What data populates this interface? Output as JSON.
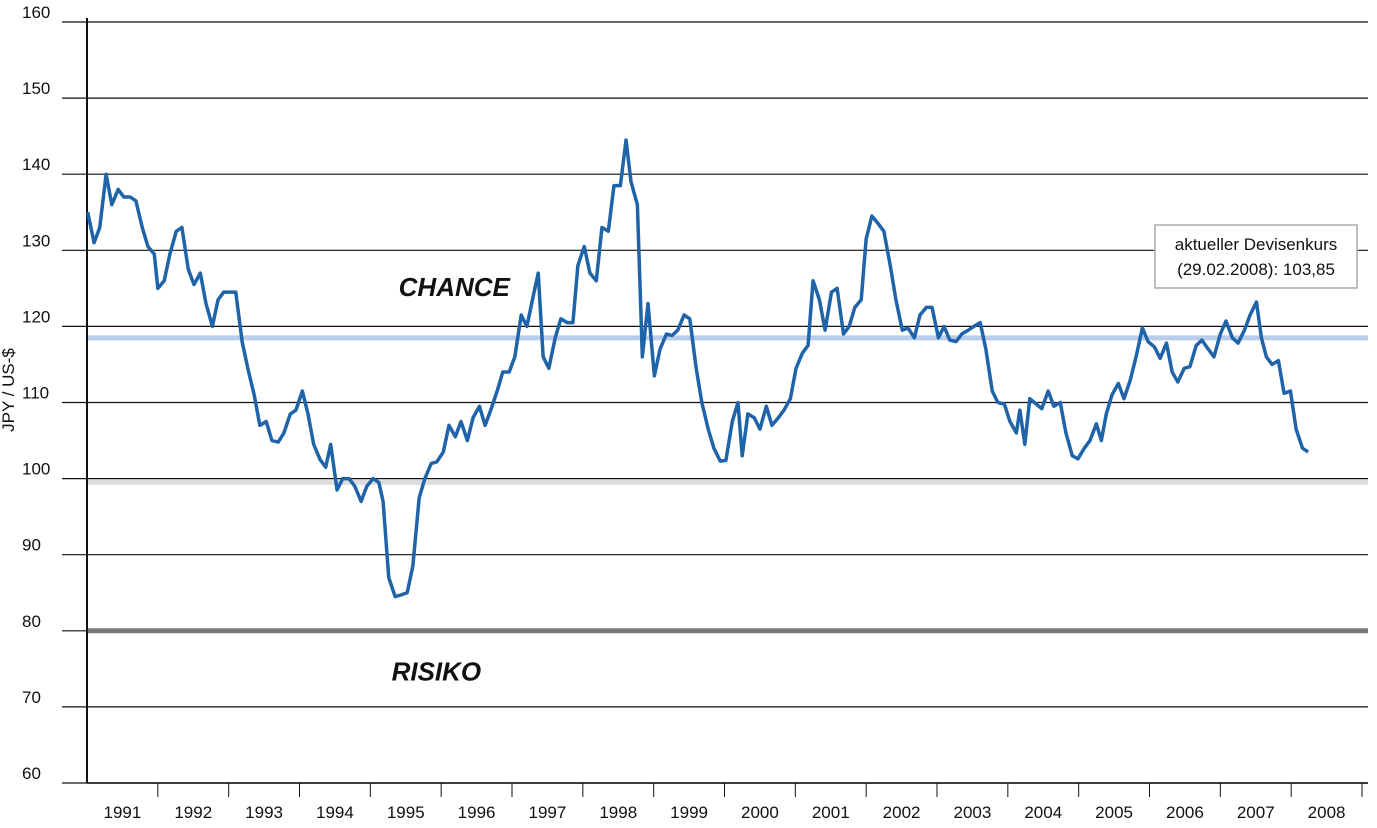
{
  "chart_data": {
    "type": "line",
    "y_label": "JPY / US-$",
    "color": "#1f63a8",
    "xlim": [
      1991,
      2009
    ],
    "ylim": [
      60,
      160
    ],
    "yticks": [
      60,
      70,
      80,
      90,
      100,
      110,
      120,
      130,
      140,
      150,
      160
    ],
    "xticks": [
      {
        "value": 1991.5,
        "label": "1991"
      },
      {
        "value": 1992.5,
        "label": "1992"
      },
      {
        "value": 1993.5,
        "label": "1993"
      },
      {
        "value": 1994.5,
        "label": "1994"
      },
      {
        "value": 1995.5,
        "label": "1995"
      },
      {
        "value": 1996.5,
        "label": "1996"
      },
      {
        "value": 1997.5,
        "label": "1997"
      },
      {
        "value": 1998.5,
        "label": "1998"
      },
      {
        "value": 1999.5,
        "label": "1999"
      },
      {
        "value": 2000.5,
        "label": "2000"
      },
      {
        "value": 2001.5,
        "label": "2001"
      },
      {
        "value": 2002.5,
        "label": "2002"
      },
      {
        "value": 2003.5,
        "label": "2003"
      },
      {
        "value": 2004.5,
        "label": "2004"
      },
      {
        "value": 2005.5,
        "label": "2005"
      },
      {
        "value": 2006.5,
        "label": "2006"
      },
      {
        "value": 2007.5,
        "label": "2007"
      },
      {
        "value": 2008.5,
        "label": "2008"
      }
    ],
    "grid": true,
    "reference_lines": [
      {
        "value": 118.5,
        "color": "#b9cdea"
      },
      {
        "value": 99.5,
        "color": "#dddddd"
      },
      {
        "value": 80,
        "color": "#7a7a7a"
      }
    ],
    "annotations": [
      {
        "text": "CHANCE",
        "x": 1995.4,
        "y": 124
      },
      {
        "text": "RISIKO",
        "x": 1995.3,
        "y": 73.5
      }
    ],
    "note_box": {
      "lines": [
        "aktueller Devisenkurs",
        "(29.02.2008): 103,85"
      ]
    },
    "x": [
      1991.01,
      1991.1,
      1991.18,
      1991.27,
      1991.35,
      1991.44,
      1991.52,
      1991.61,
      1991.69,
      1991.78,
      1991.86,
      1991.95,
      1992.0,
      1992.09,
      1992.17,
      1992.26,
      1992.34,
      1992.43,
      1992.51,
      1992.6,
      1992.68,
      1992.77,
      1992.85,
      1992.93,
      1993.02,
      1993.1,
      1993.19,
      1993.27,
      1993.36,
      1993.44,
      1993.53,
      1993.61,
      1993.7,
      1993.78,
      1993.87,
      1993.95,
      1994.04,
      1994.12,
      1994.2,
      1994.29,
      1994.37,
      1994.44,
      1994.53,
      1994.61,
      1994.7,
      1994.78,
      1994.87,
      1994.95,
      1995.04,
      1995.12,
      1995.18,
      1995.26,
      1995.35,
      1995.43,
      1995.52,
      1995.6,
      1995.69,
      1995.77,
      1995.86,
      1995.94,
      1996.03,
      1996.11,
      1996.2,
      1996.28,
      1996.37,
      1996.45,
      1996.54,
      1996.62,
      1996.7,
      1996.79,
      1996.87,
      1996.96,
      1997.04,
      1997.13,
      1997.21,
      1997.3,
      1997.37,
      1997.44,
      1997.52,
      1997.61,
      1997.69,
      1997.78,
      1997.86,
      1997.93,
      1998.02,
      1998.1,
      1998.19,
      1998.27,
      1998.36,
      1998.44,
      1998.53,
      1998.61,
      1998.68,
      1998.77,
      1998.84,
      1998.92,
      1999.01,
      1999.09,
      1999.18,
      1999.26,
      1999.34,
      1999.43,
      1999.51,
      1999.6,
      1999.68,
      1999.77,
      1999.85,
      1999.94,
      2000.02,
      2000.11,
      2000.19,
      2000.25,
      2000.33,
      2000.42,
      2000.5,
      2000.59,
      2000.67,
      2000.76,
      2000.84,
      2000.93,
      2001.01,
      2001.1,
      2001.18,
      2001.25,
      2001.34,
      2001.42,
      2001.51,
      2001.59,
      2001.68,
      2001.76,
      2001.84,
      2001.93,
      2002.0,
      2002.08,
      2002.17,
      2002.25,
      2002.34,
      2002.42,
      2002.51,
      2002.59,
      2002.68,
      2002.76,
      2002.85,
      2002.93,
      2003.02,
      2003.1,
      2003.18,
      2003.27,
      2003.35,
      2003.44,
      2003.52,
      2003.61,
      2003.69,
      2003.78,
      2003.86,
      2003.95,
      2004.03,
      2004.12,
      2004.17,
      2004.24,
      2004.31,
      2004.4,
      2004.48,
      2004.57,
      2004.65,
      2004.74,
      2004.82,
      2004.91,
      2004.99,
      2005.08,
      2005.16,
      2005.25,
      2005.32,
      2005.39,
      2005.47,
      2005.56,
      2005.64,
      2005.73,
      2005.81,
      2005.9,
      2005.98,
      2006.07,
      2006.15,
      2006.24,
      2006.32,
      2006.4,
      2006.49,
      2006.57,
      2006.66,
      2006.74,
      2006.83,
      2006.91,
      2007.0,
      2007.08,
      2007.17,
      2007.25,
      2007.34,
      2007.42,
      2007.51,
      2007.58,
      2007.65,
      2007.73,
      2007.82,
      2007.9,
      2007.99,
      2008.07,
      2008.16,
      2008.24
    ],
    "series": [
      {
        "values": [
          135,
          131,
          133,
          140,
          136,
          138,
          137,
          137,
          136.5,
          133,
          130.5,
          129.5,
          125,
          126,
          129.5,
          132.5,
          133,
          127.5,
          125.5,
          127,
          123,
          120,
          123.5,
          124.5,
          124.5,
          124.5,
          118,
          114.5,
          111,
          107,
          107.5,
          105,
          104.8,
          106,
          108.5,
          109,
          111.5,
          108.5,
          104.5,
          102.5,
          101.5,
          104.5,
          98.5,
          100,
          100,
          99,
          97,
          99,
          100,
          99.5,
          97,
          87,
          84.5,
          84.7,
          85,
          88.5,
          97.5,
          100,
          102,
          102.2,
          103.5,
          107,
          105.5,
          107.5,
          105,
          108,
          109.5,
          107,
          109,
          111.5,
          114,
          114,
          116,
          121.5,
          120,
          124,
          127,
          116,
          114.5,
          118.5,
          121,
          120.5,
          120.5,
          128,
          130.5,
          127,
          126,
          133,
          132.5,
          138.5,
          138.5,
          144.5,
          139,
          136,
          116,
          123,
          113.5,
          117,
          119,
          118.8,
          119.5,
          121.5,
          121,
          114.5,
          110,
          106.5,
          104,
          102.3,
          102.4,
          107.5,
          110,
          103,
          108.5,
          108,
          106.5,
          109.5,
          107,
          108,
          109,
          110.5,
          114.5,
          116.5,
          117.5,
          126,
          123.5,
          119.5,
          124.5,
          125,
          119,
          120,
          122.5,
          123.5,
          131.5,
          134.5,
          133.5,
          132.5,
          128,
          123.5,
          119.5,
          119.8,
          118.5,
          121.5,
          122.5,
          122.5,
          118.5,
          120,
          118.2,
          118,
          119,
          119.5,
          120,
          120.5,
          117,
          111.5,
          110,
          109.8,
          107.5,
          106,
          109,
          104.5,
          110.5,
          109.8,
          109.2,
          111.5,
          109.5,
          110,
          106,
          103,
          102.6,
          104,
          105,
          107.2,
          105,
          108.5,
          111,
          112.5,
          110.5,
          113,
          116,
          119.8,
          118,
          117.3,
          115.8,
          117.8,
          114,
          112.7,
          114.5,
          114.7,
          117.5,
          118.2,
          117,
          116,
          119,
          120.7,
          118.5,
          117.8,
          119.5,
          121.5,
          123.2,
          118.5,
          116,
          115,
          115.5,
          111.2,
          111.5,
          106.5,
          104,
          103.5
        ]
      }
    ]
  }
}
